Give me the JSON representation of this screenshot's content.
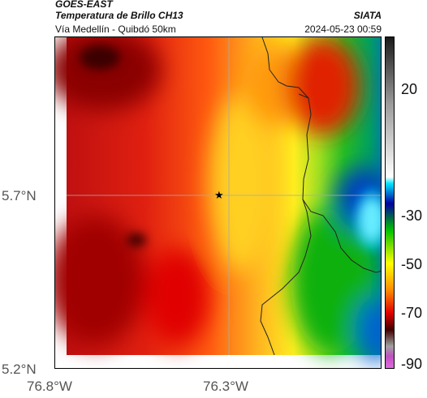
{
  "header": {
    "satellite": "GOES-EAST",
    "product": "Temperatura de Brillo CH13",
    "region": "Vía Medellín - Quibdó 50km",
    "organization": "SIATA",
    "datetime": "2024-05-23 00:59"
  },
  "map": {
    "latitude_ticks": [
      "5.7°N",
      "5.2°N"
    ],
    "longitude_ticks": [
      "76.8°W",
      "76.3°W"
    ],
    "marker_icon": "star-icon"
  },
  "colorbar": {
    "labels": [
      "20",
      "-30",
      "-50",
      "-70",
      "-90"
    ],
    "colors": [
      "#1a1a1a",
      "#ffffff",
      "#00e5ff",
      "#0000a0",
      "#00c000",
      "#ffff00",
      "#ff8c00",
      "#e00000",
      "#400000",
      "#a0a0a0",
      "#c050c0"
    ]
  }
}
